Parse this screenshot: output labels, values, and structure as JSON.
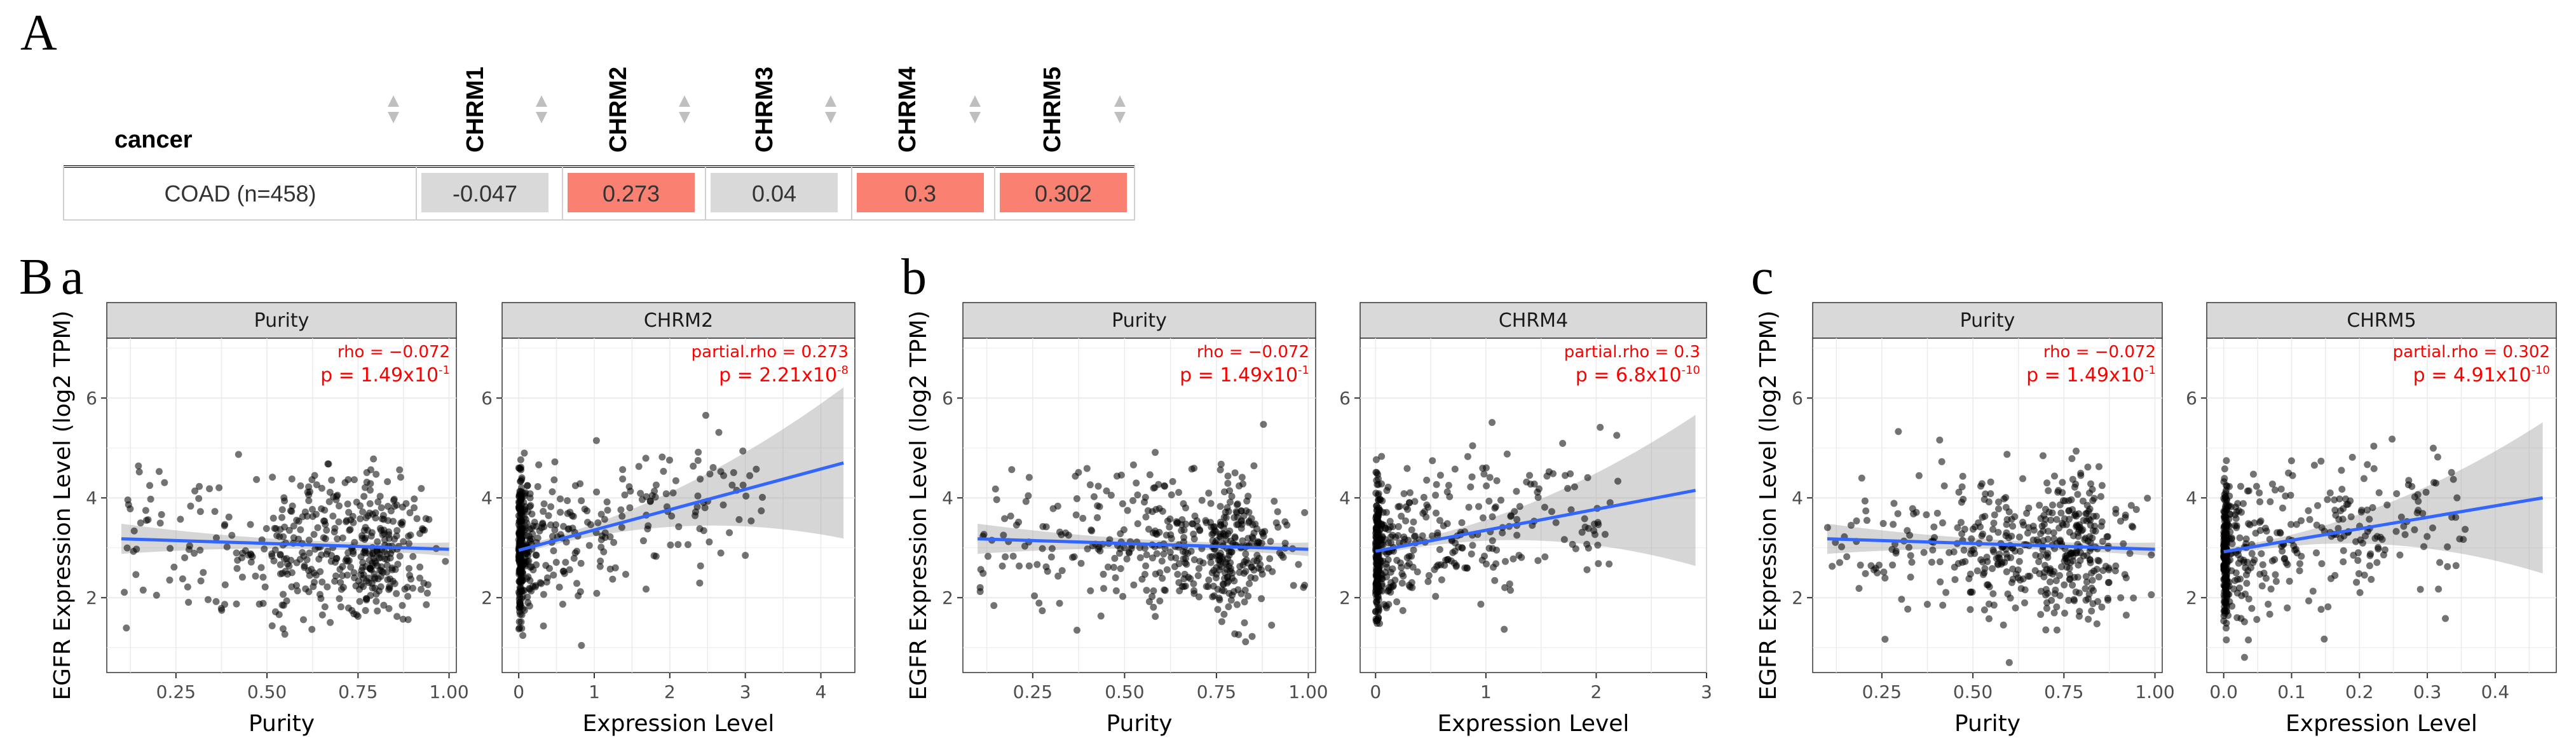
{
  "labels": {
    "panel_a": "A",
    "panel_b": "B",
    "sub": [
      "a",
      "b",
      "c"
    ]
  },
  "table": {
    "header": {
      "cancer": "cancer",
      "genes": [
        "CHRM1",
        "CHRM2",
        "CHRM3",
        "CHRM4",
        "CHRM5"
      ]
    },
    "row": {
      "cancer": "COAD (n=458)",
      "values": [
        "-0.047",
        "0.273",
        "0.04",
        "0.3",
        "0.302"
      ],
      "colors": [
        "#d9d9d9",
        "#fa8072",
        "#d9d9d9",
        "#fa8072",
        "#fa8072"
      ]
    }
  },
  "chart_data": [
    {
      "type": "scatter",
      "panel": "a",
      "ylabel": "EGFR Expression Level (log2 TPM)",
      "ylim": [
        0.5,
        7.2
      ],
      "yticks": [
        2,
        4,
        6
      ],
      "facets": [
        {
          "strip": "Purity",
          "xlabel": "Purity",
          "xlim": [
            0.06,
            1.02
          ],
          "xticks": [
            0.25,
            0.5,
            0.75,
            1.0
          ],
          "xtick_labels": [
            "0.25",
            "0.50",
            "0.75",
            "1.00"
          ],
          "annotation": {
            "stat": "rho = −0.072",
            "p_prefix": "p = 1.49x10",
            "p_exp": "-1"
          },
          "fit": {
            "x": [
              0.1,
              1.0
            ],
            "y": [
              3.18,
              2.97
            ]
          },
          "points_kind": "purity",
          "n_points": 458
        },
        {
          "strip": "CHRM2",
          "xlabel": "Expression Level",
          "xlim": [
            -0.22,
            4.45
          ],
          "xticks": [
            0,
            1,
            2,
            3,
            4
          ],
          "xtick_labels": [
            "0",
            "1",
            "2",
            "3",
            "4"
          ],
          "annotation": {
            "stat": "partial.rho = 0.273",
            "p_prefix": "p = 2.21x10",
            "p_exp": "-8"
          },
          "fit": {
            "x": [
              0,
              4.3
            ],
            "y": [
              2.95,
              4.7
            ]
          },
          "points_kind": "expr_wide",
          "n_points": 458
        }
      ]
    },
    {
      "type": "scatter",
      "panel": "b",
      "ylabel": "EGFR Expression Level (log2 TPM)",
      "ylim": [
        0.5,
        7.2
      ],
      "yticks": [
        2,
        4,
        6
      ],
      "facets": [
        {
          "strip": "Purity",
          "xlabel": "Purity",
          "xlim": [
            0.06,
            1.02
          ],
          "xticks": [
            0.25,
            0.5,
            0.75,
            1.0
          ],
          "xtick_labels": [
            "0.25",
            "0.50",
            "0.75",
            "1.00"
          ],
          "annotation": {
            "stat": "rho = −0.072",
            "p_prefix": "p = 1.49x10",
            "p_exp": "-1"
          },
          "fit": {
            "x": [
              0.1,
              1.0
            ],
            "y": [
              3.18,
              2.97
            ]
          },
          "points_kind": "purity",
          "n_points": 458
        },
        {
          "strip": "CHRM4",
          "xlabel": "Expression Level",
          "xlim": [
            -0.14,
            3.0
          ],
          "xticks": [
            0,
            1,
            2,
            3
          ],
          "xtick_labels": [
            "0",
            "1",
            "2",
            "3"
          ],
          "annotation": {
            "stat": "partial.rho = 0.3",
            "p_prefix": "p = 6.8x10",
            "p_exp": "-10"
          },
          "fit": {
            "x": [
              0,
              2.9
            ],
            "y": [
              2.93,
              4.15
            ]
          },
          "points_kind": "expr_mid",
          "n_points": 458
        }
      ]
    },
    {
      "type": "scatter",
      "panel": "c",
      "ylabel": "EGFR Expression Level (log2 TPM)",
      "ylim": [
        0.5,
        7.2
      ],
      "yticks": [
        2,
        4,
        6
      ],
      "facets": [
        {
          "strip": "Purity",
          "xlabel": "Purity",
          "xlim": [
            0.06,
            1.02
          ],
          "xticks": [
            0.25,
            0.5,
            0.75,
            1.0
          ],
          "xtick_labels": [
            "0.25",
            "0.50",
            "0.75",
            "1.00"
          ],
          "annotation": {
            "stat": "rho = −0.072",
            "p_prefix": "p = 1.49x10",
            "p_exp": "-1"
          },
          "fit": {
            "x": [
              0.1,
              1.0
            ],
            "y": [
              3.18,
              2.97
            ]
          },
          "points_kind": "purity",
          "n_points": 458
        },
        {
          "strip": "CHRM5",
          "xlabel": "Expression Level",
          "xlim": [
            -0.025,
            0.49
          ],
          "xticks": [
            0.0,
            0.1,
            0.2,
            0.3,
            0.4
          ],
          "xtick_labels": [
            "0.0",
            "0.1",
            "0.2",
            "0.3",
            "0.4"
          ],
          "annotation": {
            "stat": "partial.rho = 0.302",
            "p_prefix": "p = 4.91x10",
            "p_exp": "-10"
          },
          "fit": {
            "x": [
              0,
              0.47
            ],
            "y": [
              2.92,
              4.0
            ]
          },
          "points_kind": "expr_narrow",
          "n_points": 458
        }
      ]
    }
  ],
  "colors": {
    "positive": "#fa8072",
    "neutral": "#d9d9d9",
    "fit_line": "#3366ff",
    "ci_band": "#999999",
    "point": "#000000",
    "strip_fill": "#d9d9d9",
    "grid": "#ebebeb",
    "annotation": "#ff0000"
  }
}
